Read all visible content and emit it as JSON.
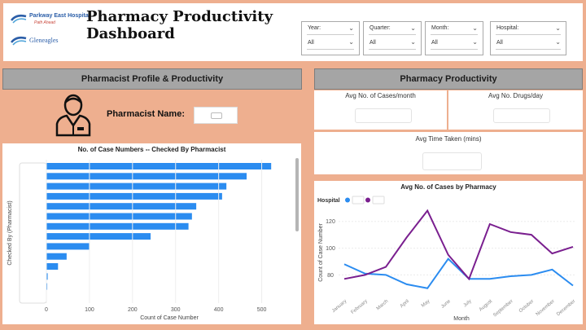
{
  "header": {
    "logo1_name": "Parkway East Hospital",
    "logo1_tag": "Path Ahead",
    "logo2_name": "Gleneagles",
    "title_line1": "Pharmacy Productivity",
    "title_line2": "Dashboard"
  },
  "filters": [
    {
      "label": "Year:",
      "value": "All"
    },
    {
      "label": "Quarter:",
      "value": "All"
    },
    {
      "label": "Month:",
      "value": "All"
    },
    {
      "label": "Hospital:",
      "value": "All"
    }
  ],
  "left_panel": {
    "title": "Pharmacist Profile & Productivity",
    "name_label": "Pharmacist Name:"
  },
  "right_panel": {
    "title": "Pharmacy Productivity",
    "kpi1_title": "Avg No. of Cases/month",
    "kpi2_title": "Avg No. Drugs/day",
    "kpi3_title": "Avg Time Taken (mins)"
  },
  "colors": {
    "accent": "#eeaf8f",
    "blue": "#2b8cf0",
    "purple": "#7a1f8f",
    "panel_header": "#a5a5a5"
  },
  "chart_data": [
    {
      "type": "bar",
      "orientation": "horizontal",
      "title": "No. of Case Numbers -- Checked By Pharmacist",
      "xlabel": "Count of Case Number",
      "ylabel": "Checked By (Pharmacist)",
      "xlim": [
        0,
        550
      ],
      "xticks": [
        0,
        100,
        200,
        300,
        400,
        500
      ],
      "values": [
        522,
        465,
        418,
        408,
        348,
        338,
        330,
        242,
        100,
        47,
        27,
        3,
        2
      ],
      "color": "#2b8cf0"
    },
    {
      "type": "line",
      "title": "Avg No. of Cases by Pharmacy",
      "xlabel": "Month",
      "ylabel": "Count of Case Number",
      "legend_title": "Hospital",
      "ylim": [
        65,
        132
      ],
      "yticks": [
        80,
        100,
        120
      ],
      "categories": [
        "January",
        "February",
        "March",
        "April",
        "May",
        "June",
        "July",
        "August",
        "September",
        "October",
        "November",
        "December"
      ],
      "series": [
        {
          "color": "#2b8cf0",
          "values": [
            88,
            81,
            80,
            73,
            70,
            92,
            77,
            77,
            79,
            80,
            84,
            72
          ]
        },
        {
          "color": "#7a1f8f",
          "values": [
            77,
            80,
            86,
            108,
            128,
            95,
            77,
            118,
            112,
            110,
            96,
            101
          ]
        }
      ]
    }
  ]
}
